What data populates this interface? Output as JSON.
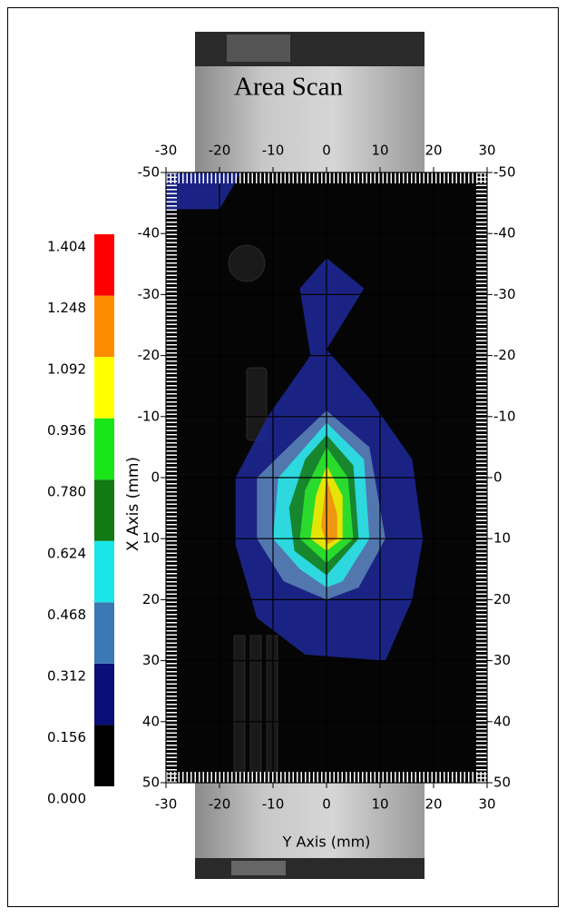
{
  "chart_data": {
    "type": "contour",
    "title": "Area Scan",
    "xlabel": "Y Axis (mm)",
    "ylabel": "X Axis (mm)",
    "xlim": [
      -30,
      30
    ],
    "ylim": [
      -50,
      50
    ],
    "xticks": [
      -30,
      -20,
      -10,
      0,
      10,
      20,
      30
    ],
    "yticks": [
      -50,
      -40,
      -30,
      -20,
      -10,
      0,
      10,
      20,
      30,
      40,
      50
    ],
    "grid": true,
    "colorbar": {
      "levels": [
        {
          "value": 0,
          "label": "0.000"
        },
        {
          "value": 0.156,
          "label": "0.156"
        },
        {
          "value": 0.312,
          "label": "0.312"
        },
        {
          "value": 0.468,
          "label": "0.468"
        },
        {
          "value": 0.624,
          "label": "0.624"
        },
        {
          "value": 0.78,
          "label": "0.780"
        },
        {
          "value": 0.936,
          "label": "0.936"
        },
        {
          "value": 1.092,
          "label": "1.092"
        },
        {
          "value": 1.248,
          "label": "1.248"
        },
        {
          "value": 1.404,
          "label": "1.404"
        }
      ],
      "colors": [
        "#000000",
        "#0a0f78",
        "#3c78b4",
        "#19e6e6",
        "#127a12",
        "#19e619",
        "#ffff00",
        "#ff8c00",
        "#ff0000"
      ]
    },
    "contours": [
      {
        "level": 0.156,
        "color": "#1e2896",
        "points": [
          [
            -30,
            -50
          ],
          [
            -16,
            -50
          ],
          [
            -20,
            -44
          ],
          [
            -30,
            -44
          ]
        ]
      },
      {
        "level": 0.156,
        "color": "#1e2896",
        "points": [
          [
            0,
            -36
          ],
          [
            7,
            -31
          ],
          [
            0,
            -21
          ],
          [
            8,
            -13
          ],
          [
            16,
            -3
          ],
          [
            18,
            10
          ],
          [
            16,
            20
          ],
          [
            11,
            30
          ],
          [
            -4,
            29
          ],
          [
            -13,
            23
          ],
          [
            -17,
            11
          ],
          [
            -17,
            0
          ],
          [
            -11,
            -10
          ],
          [
            -3,
            -20
          ],
          [
            -5,
            -31
          ]
        ]
      },
      {
        "level": 0.312,
        "color": "#5a82b4",
        "points": [
          [
            0,
            -11
          ],
          [
            8,
            -5
          ],
          [
            11,
            10
          ],
          [
            6,
            18
          ],
          [
            0,
            20
          ],
          [
            -8,
            17
          ],
          [
            -13,
            10
          ],
          [
            -13,
            0
          ],
          [
            -6,
            -6
          ]
        ]
      },
      {
        "level": 0.468,
        "color": "#28e6e6",
        "points": [
          [
            0,
            -9
          ],
          [
            7,
            -3
          ],
          [
            8,
            10
          ],
          [
            3,
            17
          ],
          [
            0,
            18
          ],
          [
            -5,
            15
          ],
          [
            -10,
            10
          ],
          [
            -9,
            0
          ],
          [
            -4,
            -5
          ]
        ]
      },
      {
        "level": 0.624,
        "color": "#157a15",
        "points": [
          [
            0,
            -7
          ],
          [
            5,
            -2
          ],
          [
            6,
            10
          ],
          [
            0,
            16
          ],
          [
            -6,
            12
          ],
          [
            -7,
            5
          ],
          [
            -4,
            -3
          ]
        ]
      },
      {
        "level": 0.78,
        "color": "#2de62d",
        "points": [
          [
            0,
            -5
          ],
          [
            4,
            0
          ],
          [
            5,
            10
          ],
          [
            0,
            14
          ],
          [
            -5,
            10
          ],
          [
            -4,
            2
          ]
        ]
      },
      {
        "level": 0.936,
        "color": "#ffe600",
        "points": [
          [
            0,
            -2
          ],
          [
            3,
            3
          ],
          [
            3,
            10
          ],
          [
            0,
            12
          ],
          [
            -3,
            10
          ],
          [
            -2,
            3
          ]
        ]
      },
      {
        "level": 1.092,
        "color": "#f08c14",
        "points": [
          [
            0,
            0
          ],
          [
            2,
            6
          ],
          [
            2,
            10
          ],
          [
            0,
            11
          ],
          [
            -1,
            8
          ]
        ]
      }
    ]
  }
}
